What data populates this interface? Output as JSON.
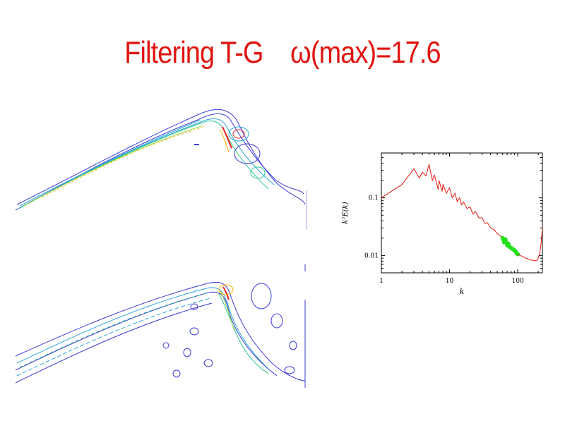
{
  "slide": {
    "title": "Filtering T-G    ω(max)=17.6"
  },
  "contours": {
    "top_panel": {
      "description_level_colors": [
        "#3a3ad8",
        "#2aa7d8",
        "#30c890",
        "#9be04a",
        "#ffb400",
        "#e82020"
      ]
    },
    "bottom_panel": {
      "description_level_colors": [
        "#3a3ad8",
        "#2aa7d8",
        "#30c890",
        "#9be04a",
        "#ffb400",
        "#e82020"
      ]
    }
  },
  "chart_data": {
    "type": "line",
    "xlabel": "k",
    "ylabel": "k²E(k)",
    "xscale": "log",
    "yscale": "log",
    "xlim": [
      1,
      230
    ],
    "ylim": [
      0.005,
      0.6
    ],
    "xticks": [
      {
        "value": 1,
        "label": "1"
      },
      {
        "value": 10,
        "label": "10"
      },
      {
        "value": 100,
        "label": "100"
      }
    ],
    "yticks": [
      {
        "value": 0.01,
        "label": "0.01"
      },
      {
        "value": 0.1,
        "label": "0.1"
      }
    ],
    "grid": false,
    "series": [
      {
        "color": "#e8180f",
        "x": [
          1,
          2,
          3,
          3.6,
          4,
          4.5,
          5,
          5.6,
          6,
          6.8,
          7,
          7.8,
          8,
          9,
          10,
          11,
          12,
          13,
          14,
          15,
          16,
          18,
          20,
          22,
          24,
          27,
          30,
          33,
          36,
          40,
          45,
          50,
          55,
          60
        ],
        "y": [
          0.1,
          0.17,
          0.32,
          0.22,
          0.28,
          0.24,
          0.38,
          0.2,
          0.25,
          0.14,
          0.2,
          0.13,
          0.17,
          0.12,
          0.15,
          0.1,
          0.12,
          0.085,
          0.1,
          0.075,
          0.085,
          0.065,
          0.07,
          0.052,
          0.058,
          0.045,
          0.045,
          0.036,
          0.037,
          0.03,
          0.028,
          0.024,
          0.022,
          0.02
        ]
      },
      {
        "color": "#22e01a",
        "x": [
          60,
          63,
          66,
          70,
          73,
          76,
          80,
          84,
          88,
          92,
          96,
          100
        ],
        "y": [
          0.02,
          0.017,
          0.019,
          0.015,
          0.016,
          0.014,
          0.0135,
          0.013,
          0.0125,
          0.012,
          0.011,
          0.0105
        ]
      },
      {
        "color": "#e8180f",
        "x": [
          100,
          110,
          120,
          130,
          140,
          150,
          160,
          170,
          180,
          190,
          200,
          210,
          220,
          230
        ],
        "y": [
          0.0105,
          0.01,
          0.0095,
          0.009,
          0.0088,
          0.0085,
          0.0083,
          0.0082,
          0.0081,
          0.0082,
          0.009,
          0.011,
          0.016,
          0.03
        ]
      }
    ]
  }
}
